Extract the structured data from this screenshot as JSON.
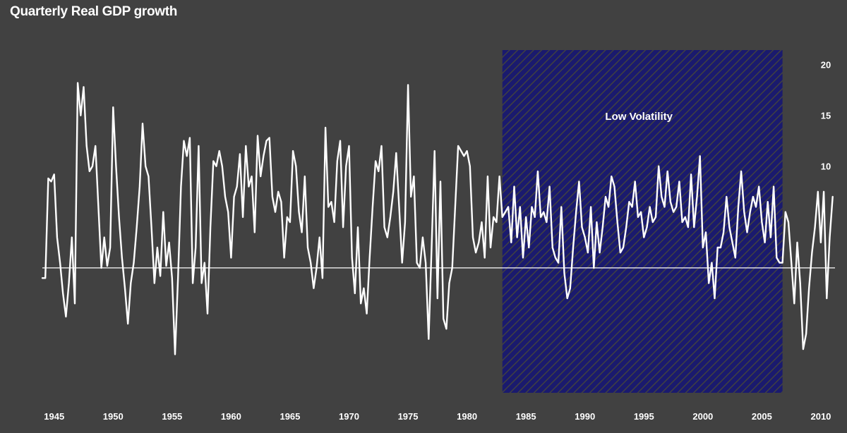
{
  "chart_data": {
    "type": "line",
    "title": "Quarterly Real GDP growth",
    "xlabel": "",
    "ylabel": "",
    "xlim": [
      1944,
      2011.2
    ],
    "ylim": [
      -12.5,
      21.5
    ],
    "x_ticks": [
      {
        "v": 1945,
        "label": "1945"
      },
      {
        "v": 1950,
        "label": "1950"
      },
      {
        "v": 1955,
        "label": "1955"
      },
      {
        "v": 1960,
        "label": "1960"
      },
      {
        "v": 1965,
        "label": "1965"
      },
      {
        "v": 1970,
        "label": "1970"
      },
      {
        "v": 1975,
        "label": "1975"
      },
      {
        "v": 1980,
        "label": "1980"
      },
      {
        "v": 1985,
        "label": "1985"
      },
      {
        "v": 1990,
        "label": "1990"
      },
      {
        "v": 1995,
        "label": "1995"
      },
      {
        "v": 2000,
        "label": "2000"
      },
      {
        "v": 2005,
        "label": "2005"
      },
      {
        "v": 2010,
        "label": "2010"
      }
    ],
    "y_ticks": [
      {
        "v": 20,
        "label": "20"
      },
      {
        "v": 15,
        "label": "15"
      },
      {
        "v": 10,
        "label": "10"
      }
    ],
    "grid": false,
    "zero_line": 0,
    "shaded_region": {
      "x0": 1983.0,
      "x1": 2006.75,
      "label": "Low Volatility",
      "color": "#1a1a6e"
    },
    "colors": {
      "background": "#414141",
      "line": "#ffffff",
      "text": "#ffffff"
    },
    "series": [
      {
        "values": [
          [
            1944.0,
            -1.0
          ],
          [
            1944.25,
            -1.0
          ],
          [
            1944.5,
            8.8
          ],
          [
            1944.75,
            8.5
          ],
          [
            1945.0,
            9.2
          ],
          [
            1945.25,
            3.0
          ],
          [
            1945.5,
            0.5
          ],
          [
            1945.75,
            -2.5
          ],
          [
            1946.0,
            -4.8
          ],
          [
            1946.25,
            -1.5
          ],
          [
            1946.5,
            3.0
          ],
          [
            1946.75,
            -3.5
          ],
          [
            1947.0,
            18.2
          ],
          [
            1947.25,
            15.0
          ],
          [
            1947.5,
            17.8
          ],
          [
            1947.75,
            12.0
          ],
          [
            1948.0,
            9.5
          ],
          [
            1948.25,
            10.0
          ],
          [
            1948.5,
            12.0
          ],
          [
            1948.75,
            6.0
          ],
          [
            1949.0,
            0.0
          ],
          [
            1949.25,
            3.0
          ],
          [
            1949.5,
            0.2
          ],
          [
            1949.75,
            2.0
          ],
          [
            1950.0,
            15.8
          ],
          [
            1950.25,
            10.0
          ],
          [
            1950.5,
            5.0
          ],
          [
            1950.75,
            1.0
          ],
          [
            1951.0,
            -2.0
          ],
          [
            1951.25,
            -5.5
          ],
          [
            1951.5,
            -1.5
          ],
          [
            1951.75,
            0.5
          ],
          [
            1952.0,
            4.0
          ],
          [
            1952.25,
            8.0
          ],
          [
            1952.5,
            14.2
          ],
          [
            1952.75,
            10.0
          ],
          [
            1953.0,
            9.0
          ],
          [
            1953.25,
            4.0
          ],
          [
            1953.5,
            -1.5
          ],
          [
            1953.75,
            2.0
          ],
          [
            1954.0,
            -0.8
          ],
          [
            1954.25,
            5.5
          ],
          [
            1954.5,
            0.2
          ],
          [
            1954.75,
            2.5
          ],
          [
            1955.0,
            -1.0
          ],
          [
            1955.25,
            -8.5
          ],
          [
            1955.5,
            -1.0
          ],
          [
            1955.75,
            8.0
          ],
          [
            1956.0,
            12.5
          ],
          [
            1956.25,
            11.0
          ],
          [
            1956.5,
            12.8
          ],
          [
            1956.75,
            -1.5
          ],
          [
            1957.0,
            2.0
          ],
          [
            1957.25,
            12.0
          ],
          [
            1957.5,
            -1.5
          ],
          [
            1957.75,
            0.5
          ],
          [
            1958.0,
            -4.5
          ],
          [
            1958.25,
            4.0
          ],
          [
            1958.5,
            10.5
          ],
          [
            1958.75,
            10.0
          ],
          [
            1959.0,
            11.5
          ],
          [
            1959.25,
            10.0
          ],
          [
            1959.5,
            7.0
          ],
          [
            1959.75,
            5.5
          ],
          [
            1960.0,
            1.0
          ],
          [
            1960.25,
            7.0
          ],
          [
            1960.5,
            8.0
          ],
          [
            1960.75,
            11.2
          ],
          [
            1961.0,
            5.0
          ],
          [
            1961.25,
            12.0
          ],
          [
            1961.5,
            8.0
          ],
          [
            1961.75,
            9.0
          ],
          [
            1962.0,
            3.5
          ],
          [
            1962.25,
            13.0
          ],
          [
            1962.5,
            9.0
          ],
          [
            1962.75,
            11.0
          ],
          [
            1963.0,
            12.5
          ],
          [
            1963.25,
            12.8
          ],
          [
            1963.5,
            7.0
          ],
          [
            1963.75,
            5.5
          ],
          [
            1964.0,
            7.5
          ],
          [
            1964.25,
            6.5
          ],
          [
            1964.5,
            1.0
          ],
          [
            1964.75,
            5.0
          ],
          [
            1965.0,
            4.5
          ],
          [
            1965.25,
            11.5
          ],
          [
            1965.5,
            10.0
          ],
          [
            1965.75,
            5.5
          ],
          [
            1966.0,
            3.5
          ],
          [
            1966.25,
            9.0
          ],
          [
            1966.5,
            2.0
          ],
          [
            1966.75,
            0.5
          ],
          [
            1967.0,
            -2.0
          ],
          [
            1967.25,
            0.0
          ],
          [
            1967.5,
            3.0
          ],
          [
            1967.75,
            -1.0
          ],
          [
            1968.0,
            13.8
          ],
          [
            1968.25,
            6.0
          ],
          [
            1968.5,
            6.5
          ],
          [
            1968.75,
            4.5
          ],
          [
            1969.0,
            10.5
          ],
          [
            1969.25,
            12.5
          ],
          [
            1969.5,
            4.0
          ],
          [
            1969.75,
            10.0
          ],
          [
            1970.0,
            12.0
          ],
          [
            1970.25,
            1.0
          ],
          [
            1970.5,
            -2.5
          ],
          [
            1970.75,
            4.0
          ],
          [
            1971.0,
            -3.5
          ],
          [
            1971.25,
            -2.0
          ],
          [
            1971.5,
            -4.5
          ],
          [
            1971.75,
            1.0
          ],
          [
            1972.0,
            6.0
          ],
          [
            1972.25,
            10.5
          ],
          [
            1972.5,
            9.5
          ],
          [
            1972.75,
            12.0
          ],
          [
            1973.0,
            4.0
          ],
          [
            1973.25,
            3.0
          ],
          [
            1973.5,
            5.0
          ],
          [
            1973.75,
            7.5
          ],
          [
            1974.0,
            11.3
          ],
          [
            1974.25,
            6.0
          ],
          [
            1974.5,
            0.5
          ],
          [
            1974.75,
            4.5
          ],
          [
            1975.0,
            18.0
          ],
          [
            1975.25,
            7.0
          ],
          [
            1975.5,
            9.0
          ],
          [
            1975.75,
            0.5
          ],
          [
            1976.0,
            0.0
          ],
          [
            1976.25,
            3.0
          ],
          [
            1976.5,
            0.5
          ],
          [
            1976.75,
            -7.0
          ],
          [
            1977.0,
            2.0
          ],
          [
            1977.25,
            11.5
          ],
          [
            1977.5,
            -3.0
          ],
          [
            1977.75,
            8.5
          ],
          [
            1978.0,
            -5.0
          ],
          [
            1978.25,
            -6.0
          ],
          [
            1978.5,
            -1.5
          ],
          [
            1978.75,
            0.0
          ],
          [
            1979.0,
            6.0
          ],
          [
            1979.25,
            12.0
          ],
          [
            1979.5,
            11.5
          ],
          [
            1979.75,
            11.0
          ],
          [
            1980.0,
            11.5
          ],
          [
            1980.25,
            10.0
          ],
          [
            1980.5,
            3.0
          ],
          [
            1980.75,
            1.5
          ],
          [
            1981.0,
            2.5
          ],
          [
            1981.25,
            4.5
          ],
          [
            1981.5,
            1.0
          ],
          [
            1981.75,
            9.0
          ],
          [
            1982.0,
            2.0
          ],
          [
            1982.25,
            5.0
          ],
          [
            1982.5,
            4.5
          ],
          [
            1982.75,
            9.0
          ],
          [
            1983.0,
            5.0
          ],
          [
            1983.25,
            5.5
          ],
          [
            1983.5,
            6.0
          ],
          [
            1983.75,
            2.5
          ],
          [
            1984.0,
            8.0
          ],
          [
            1984.25,
            3.0
          ],
          [
            1984.5,
            6.0
          ],
          [
            1984.75,
            1.0
          ],
          [
            1985.0,
            5.0
          ],
          [
            1985.25,
            2.0
          ],
          [
            1985.5,
            6.0
          ],
          [
            1985.75,
            5.0
          ],
          [
            1986.0,
            9.5
          ],
          [
            1986.25,
            5.0
          ],
          [
            1986.5,
            5.5
          ],
          [
            1986.75,
            4.5
          ],
          [
            1987.0,
            8.0
          ],
          [
            1987.25,
            2.0
          ],
          [
            1987.5,
            1.0
          ],
          [
            1987.75,
            0.5
          ],
          [
            1988.0,
            6.0
          ],
          [
            1988.25,
            -0.5
          ],
          [
            1988.5,
            -3.0
          ],
          [
            1988.75,
            -2.0
          ],
          [
            1989.0,
            2.0
          ],
          [
            1989.25,
            5.5
          ],
          [
            1989.5,
            8.5
          ],
          [
            1989.75,
            4.0
          ],
          [
            1990.0,
            3.0
          ],
          [
            1990.25,
            1.5
          ],
          [
            1990.5,
            6.0
          ],
          [
            1990.75,
            0.0
          ],
          [
            1991.0,
            4.5
          ],
          [
            1991.25,
            1.5
          ],
          [
            1991.5,
            4.0
          ],
          [
            1991.75,
            7.0
          ],
          [
            1992.0,
            6.0
          ],
          [
            1992.25,
            9.0
          ],
          [
            1992.5,
            8.0
          ],
          [
            1992.75,
            4.5
          ],
          [
            1993.0,
            1.5
          ],
          [
            1993.25,
            2.0
          ],
          [
            1993.5,
            4.0
          ],
          [
            1993.75,
            6.5
          ],
          [
            1994.0,
            6.0
          ],
          [
            1994.25,
            8.5
          ],
          [
            1994.5,
            5.0
          ],
          [
            1994.75,
            5.5
          ],
          [
            1995.0,
            3.0
          ],
          [
            1995.25,
            4.0
          ],
          [
            1995.5,
            6.0
          ],
          [
            1995.75,
            4.5
          ],
          [
            1996.0,
            5.0
          ],
          [
            1996.25,
            10.0
          ],
          [
            1996.5,
            7.0
          ],
          [
            1996.75,
            6.0
          ],
          [
            1997.0,
            9.5
          ],
          [
            1997.25,
            6.5
          ],
          [
            1997.5,
            5.5
          ],
          [
            1997.75,
            6.0
          ],
          [
            1998.0,
            8.5
          ],
          [
            1998.25,
            4.5
          ],
          [
            1998.5,
            5.0
          ],
          [
            1998.75,
            4.0
          ],
          [
            1999.0,
            9.2
          ],
          [
            1999.25,
            4.0
          ],
          [
            1999.5,
            7.0
          ],
          [
            1999.75,
            11.0
          ],
          [
            2000.0,
            2.0
          ],
          [
            2000.25,
            3.5
          ],
          [
            2000.5,
            -1.5
          ],
          [
            2000.75,
            0.5
          ],
          [
            2001.0,
            -3.0
          ],
          [
            2001.25,
            2.0
          ],
          [
            2001.5,
            2.0
          ],
          [
            2001.75,
            3.5
          ],
          [
            2002.0,
            7.0
          ],
          [
            2002.25,
            4.0
          ],
          [
            2002.5,
            2.5
          ],
          [
            2002.75,
            1.0
          ],
          [
            2003.0,
            6.0
          ],
          [
            2003.25,
            9.5
          ],
          [
            2003.5,
            5.5
          ],
          [
            2003.75,
            3.5
          ],
          [
            2004.0,
            5.5
          ],
          [
            2004.25,
            7.0
          ],
          [
            2004.5,
            6.0
          ],
          [
            2004.75,
            8.0
          ],
          [
            2005.0,
            4.5
          ],
          [
            2005.25,
            2.5
          ],
          [
            2005.5,
            6.5
          ],
          [
            2005.75,
            3.0
          ],
          [
            2006.0,
            8.0
          ],
          [
            2006.25,
            1.0
          ],
          [
            2006.5,
            0.5
          ],
          [
            2006.75,
            0.5
          ],
          [
            2007.0,
            5.5
          ],
          [
            2007.25,
            4.5
          ],
          [
            2007.5,
            0.5
          ],
          [
            2007.75,
            -3.5
          ],
          [
            2008.0,
            2.5
          ],
          [
            2008.25,
            -1.5
          ],
          [
            2008.5,
            -8.0
          ],
          [
            2008.75,
            -6.5
          ],
          [
            2009.0,
            -2.0
          ],
          [
            2009.25,
            1.5
          ],
          [
            2009.5,
            4.0
          ],
          [
            2009.75,
            7.5
          ],
          [
            2010.0,
            2.5
          ],
          [
            2010.25,
            7.5
          ],
          [
            2010.5,
            -3.0
          ],
          [
            2010.75,
            3.0
          ],
          [
            2011.0,
            7.0
          ]
        ]
      }
    ]
  }
}
